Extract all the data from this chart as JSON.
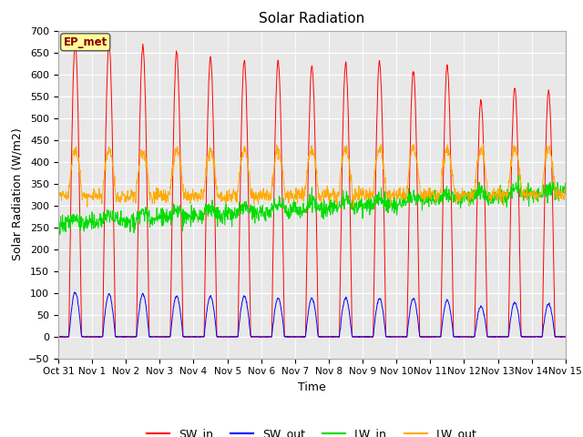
{
  "title": "Solar Radiation",
  "xlabel": "Time",
  "ylabel": "Solar Radiation (W/m2)",
  "ylim": [
    -50,
    700
  ],
  "bg_color": "#e8e8e8",
  "fig_color": "#ffffff",
  "grid_color": "#ffffff",
  "line_colors": {
    "SW_in": "#ff0000",
    "SW_out": "#0000ff",
    "LW_in": "#00dd00",
    "LW_out": "#ffaa00"
  },
  "ep_met_label": "EP_met",
  "ep_met_bg": "#ffff99",
  "ep_met_border": "#555555",
  "num_days": 15,
  "sw_in_peaks": [
    670,
    670,
    665,
    650,
    638,
    632,
    628,
    620,
    625,
    628,
    608,
    618,
    538,
    570,
    560
  ],
  "sw_out_peaks": [
    100,
    97,
    97,
    93,
    92,
    92,
    87,
    87,
    87,
    87,
    87,
    83,
    68,
    78,
    75
  ],
  "legend_labels": [
    "SW_in",
    "SW_out",
    "LW_in",
    "LW_out"
  ]
}
